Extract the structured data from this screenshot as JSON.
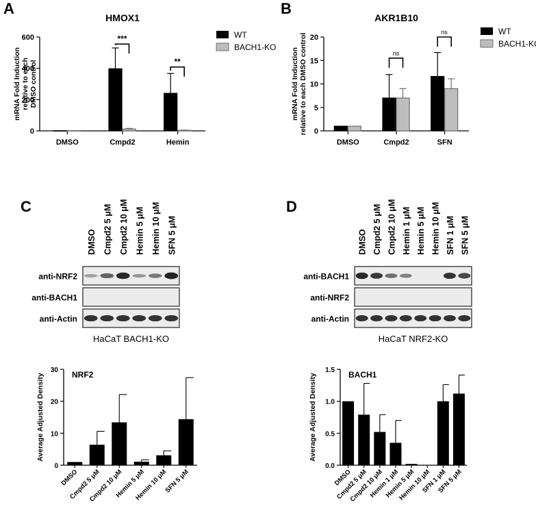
{
  "panels": {
    "A": {
      "letter": "A",
      "title": "HMOX1"
    },
    "B": {
      "letter": "B",
      "title": "AKR1B10"
    },
    "C": {
      "letter": "C",
      "caption": "HaCaT BACH1-KO"
    },
    "D": {
      "letter": "D",
      "caption": "HaCaT NRF2-KO"
    }
  },
  "colors": {
    "wt": "#000000",
    "ko": "#bdbdbd",
    "ko_edge": "#6f6f6f",
    "blot_bg": "#ececec",
    "band": "#1a1a1a"
  },
  "legend": {
    "wt": "WT",
    "ko": "BACH1-KO",
    "placement": "right"
  },
  "blots": {
    "C": {
      "lanes": [
        "DMSO",
        "Cmpd2 5 μM",
        "Cmpd2 10 μM",
        "Hemin 5 μM",
        "Hemin 10 μM",
        "SFN 5 μM"
      ],
      "rows": [
        {
          "label": "anti-NRF2",
          "intensity": [
            0.15,
            0.55,
            0.9,
            0.2,
            0.4,
            0.95
          ]
        },
        {
          "label": "anti-BACH1",
          "intensity": [
            0,
            0,
            0,
            0,
            0,
            0
          ]
        },
        {
          "label": "anti-Actin",
          "intensity": [
            0.85,
            0.85,
            0.85,
            0.85,
            0.85,
            0.85
          ]
        }
      ]
    },
    "D": {
      "lanes": [
        "DMSO",
        "Cmpd2 5 μM",
        "Cmpd2 10 μM",
        "Hemin 1 μM",
        "Hemin 5 μM",
        "Hemin 10 μM",
        "SFN 1 μM",
        "SFN 5 μM"
      ],
      "rows": [
        {
          "label": "anti-BACH1",
          "intensity": [
            0.9,
            0.8,
            0.45,
            0.35,
            0,
            0,
            0.85,
            0.7
          ]
        },
        {
          "label": "anti-NRF2",
          "intensity": [
            0,
            0,
            0,
            0,
            0,
            0,
            0,
            0
          ]
        },
        {
          "label": "anti-Actin",
          "intensity": [
            0.85,
            0.85,
            0.85,
            0.85,
            0.85,
            0.85,
            0.85,
            0.85
          ]
        }
      ]
    }
  },
  "chart_data": [
    {
      "id": "A",
      "type": "bar",
      "title": "HMOX1",
      "ylabel": "mRNA Fold Induction relative to each DMSO control",
      "ylabel_lines": [
        "mRNA Fold Induction",
        "relative to each",
        "DMSO control"
      ],
      "categories": [
        "DMSO",
        "Cmpd2",
        "Hemin"
      ],
      "ylim": [
        0,
        600
      ],
      "yticks": [
        0,
        200,
        400,
        600
      ],
      "series": [
        {
          "name": "WT",
          "values": [
            1,
            397,
            240
          ],
          "errors": [
            0,
            133,
            127
          ]
        },
        {
          "name": "BACH1-KO",
          "values": [
            1,
            12,
            4
          ],
          "errors": [
            0,
            4,
            1
          ]
        }
      ],
      "annotations": [
        {
          "category": 1,
          "text": "***",
          "y": 555
        },
        {
          "category": 2,
          "text": "**",
          "y": 408
        }
      ]
    },
    {
      "id": "B",
      "type": "bar",
      "title": "AKR1B10",
      "ylabel": "mRNA Fold Induction relative to each DMSO control",
      "ylabel_lines": [
        "mRNA Fold Induction",
        "relative to each DMSO control"
      ],
      "categories": [
        "DMSO",
        "Cmpd2",
        "SFN"
      ],
      "ylim": [
        0,
        20
      ],
      "yticks": [
        0,
        5,
        10,
        15,
        20
      ],
      "series": [
        {
          "name": "WT",
          "values": [
            1,
            7.0,
            11.6
          ],
          "errors": [
            0,
            5.0,
            5.1
          ]
        },
        {
          "name": "BACH1-KO",
          "values": [
            1,
            7.0,
            9.0
          ],
          "errors": [
            0,
            2.0,
            2.1
          ]
        }
      ],
      "annotations": [
        {
          "category": 1,
          "text": "ns",
          "y": 15.5
        },
        {
          "category": 2,
          "text": "ns",
          "y": 20
        }
      ]
    },
    {
      "id": "C",
      "type": "bar",
      "title": "NRF2",
      "ylabel": "Average Adjusted Density",
      "categories": [
        "DMSO",
        "Cmpd2 5 μM",
        "Cmpd2 10 μM",
        "Hemin 5 μM",
        "Hemin 10 μM",
        "SFN 5 μM"
      ],
      "ylim": [
        0,
        30
      ],
      "yticks": [
        0,
        10,
        20,
        30
      ],
      "series": [
        {
          "values": [
            1,
            6.4,
            13.4,
            1.1,
            3.1,
            14.4
          ],
          "errors": [
            0,
            4.2,
            8.7,
            0.6,
            1.4,
            13.0
          ]
        }
      ]
    },
    {
      "id": "D",
      "type": "bar",
      "title": "BACH1",
      "ylabel": "Average Adjusted Density",
      "categories": [
        "DMSO",
        "Cmpd2 5 μM",
        "Cmpd2 10 μM",
        "Hemin 1 μM",
        "Hemin 5 μM",
        "Hemin 10 μM",
        "SFN 1 μM",
        "SFN 5 μM"
      ],
      "ylim": [
        0,
        1.5
      ],
      "yticks": [
        "0.0",
        "0.5",
        "1.0",
        "1.5"
      ],
      "series": [
        {
          "values": [
            1.0,
            0.79,
            0.52,
            0.35,
            0.02,
            0.005,
            1.0,
            1.12
          ],
          "errors": [
            0,
            0.49,
            0.27,
            0.35,
            0,
            0,
            0.26,
            0.29
          ]
        }
      ]
    }
  ]
}
